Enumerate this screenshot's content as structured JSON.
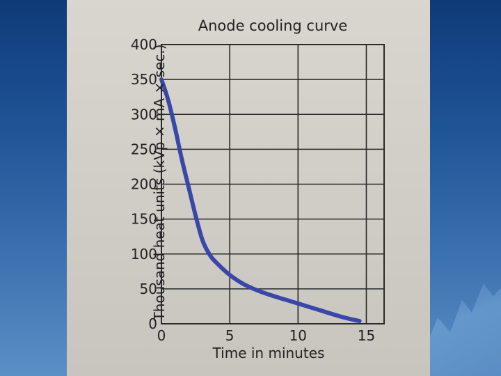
{
  "chart_data": {
    "type": "line",
    "title": "Anode cooling curve",
    "xlabel": "Time in minutes",
    "ylabel": "Thousand heat units (kVp × mA × sec.)",
    "xlim": [
      0,
      16.3
    ],
    "ylim": [
      0,
      400
    ],
    "xticks": [
      0,
      5,
      10,
      15
    ],
    "yticks": [
      0,
      50,
      100,
      150,
      200,
      250,
      300,
      350,
      400
    ],
    "grid": true,
    "series": [
      {
        "color": "#3a47a8",
        "x": [
          0,
          0.5,
          1,
          1.5,
          2,
          2.5,
          3,
          3.5,
          4,
          5,
          6,
          7,
          8,
          9,
          10,
          11,
          12,
          13,
          14,
          14.5
        ],
        "y": [
          350,
          320,
          280,
          235,
          195,
          155,
          120,
          100,
          88,
          70,
          57,
          48,
          41,
          35,
          29,
          23,
          17,
          11,
          6,
          4
        ]
      }
    ]
  }
}
